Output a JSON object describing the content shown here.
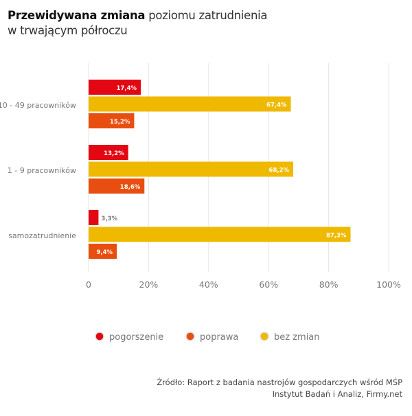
{
  "title": {
    "bold": "Przewidywana zmiana",
    "rest": " poziomu zatrudnienia",
    "line2": "w trwającym półroczu"
  },
  "colors": {
    "pogorszenie": "#e30613",
    "bez zmian": "#efb900",
    "poprawa": "#e84e0f",
    "grid": "#e6e6e6",
    "text": "#777777"
  },
  "chart_data": {
    "type": "bar",
    "orientation": "horizontal",
    "categories": [
      "10 - 49 pracowników",
      "1 - 9 pracowników",
      "samozatrudnienie"
    ],
    "series": [
      {
        "name": "pogorszenie",
        "values": [
          17.4,
          13.2,
          3.3
        ],
        "labels": [
          "17,4%",
          "13,2%",
          "3,3%"
        ]
      },
      {
        "name": "bez zmian",
        "values": [
          67.4,
          68.2,
          87.3
        ],
        "labels": [
          "67,4%",
          "68,2%",
          "87,3%"
        ]
      },
      {
        "name": "poprawa",
        "values": [
          15.2,
          18.6,
          9.4
        ],
        "labels": [
          "15,2%",
          "18,6%",
          "9,4%"
        ]
      }
    ],
    "xlim": [
      0,
      100
    ],
    "xticks": [
      0,
      20,
      40,
      60,
      80,
      100
    ],
    "xtick_labels": [
      "0",
      "20%",
      "40%",
      "60%",
      "80%",
      "100%"
    ],
    "grid": true,
    "legend_position": "bottom",
    "legend": [
      "pogorszenie",
      "poprawa",
      "bez zmian"
    ]
  },
  "source": {
    "line1": "Źródło: Raport z badania nastrojów gospodarczych wśród MŚP",
    "line2": "Instytut Badań i Analiz, Firmy.net"
  }
}
